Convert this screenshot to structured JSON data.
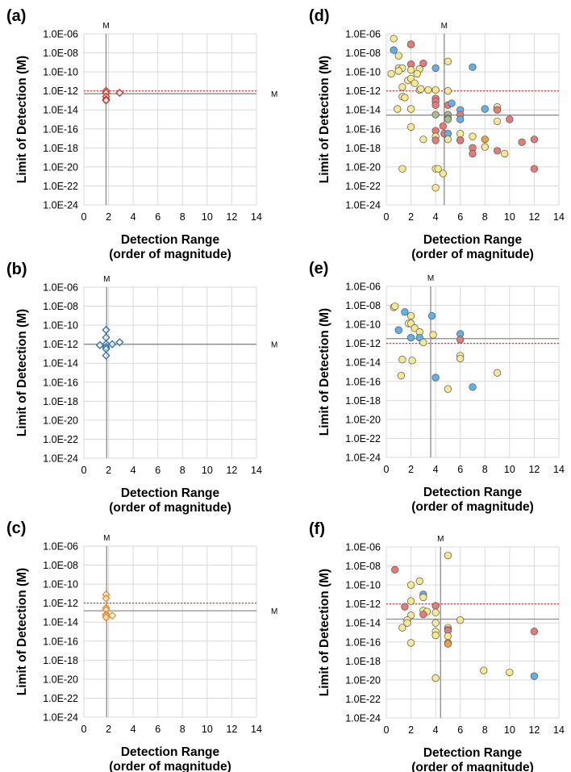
{
  "chart_data": [
    {
      "type": "scatter",
      "panel_label": "(a)",
      "xlabel": [
        "Detection Range",
        "(order of magnitude)"
      ],
      "ylabel": "Limit of Detection (M)",
      "xlim": [
        0,
        14
      ],
      "xticks": [
        "0",
        "2",
        "4",
        "6",
        "8",
        "10",
        "12",
        "14"
      ],
      "ylim_log10": [
        -24,
        -6
      ],
      "yticks": [
        "1.0E-06",
        "1.0E-08",
        "1.0E-10",
        "1.0E-12",
        "1.0E-14",
        "1.0E-16",
        "1.0E-18",
        "1.0E-20",
        "1.0E-22",
        "1.0E-24"
      ],
      "grid": true,
      "marker": "diamond",
      "marker_color": "#c0392b",
      "reference_line_log10": -12,
      "mean_label": "M",
      "mean": {
        "x": 1.8,
        "y_log10": -12.3
      },
      "points": [
        [
          1.8,
          -12.0
        ],
        [
          1.8,
          -12.2
        ],
        [
          1.8,
          -12.6
        ],
        [
          1.8,
          -12.9
        ],
        [
          1.8,
          -13.0
        ],
        [
          2.9,
          -12.2
        ]
      ]
    },
    {
      "type": "scatter",
      "panel_label": "(b)",
      "xlabel": [
        "Detection Range",
        "(order of magnitude)"
      ],
      "ylabel": "Limit of Detection (M)",
      "xlim": [
        0,
        14
      ],
      "xticks": [
        "0",
        "2",
        "4",
        "6",
        "8",
        "10",
        "12",
        "14"
      ],
      "ylim_log10": [
        -24,
        -6
      ],
      "yticks": [
        "1.0E-06",
        "1.0E-08",
        "1.0E-10",
        "1.0E-12",
        "1.0E-14",
        "1.0E-16",
        "1.0E-18",
        "1.0E-20",
        "1.0E-22",
        "1.0E-24"
      ],
      "grid": true,
      "marker": "diamond",
      "marker_color": "#2e6da4",
      "reference_line_log10": -12,
      "mean_label": "M",
      "mean": {
        "x": 1.85,
        "y_log10": -12.0
      },
      "points": [
        [
          1.8,
          -10.5
        ],
        [
          1.8,
          -11.3
        ],
        [
          1.3,
          -12.1
        ],
        [
          1.8,
          -12.0
        ],
        [
          1.8,
          -12.3
        ],
        [
          1.8,
          -12.5
        ],
        [
          1.8,
          -13.2
        ],
        [
          2.3,
          -12.0
        ],
        [
          2.9,
          -11.8
        ]
      ]
    },
    {
      "type": "scatter",
      "panel_label": "(c)",
      "xlabel": [
        "Detection Range",
        "(order of magnitude)"
      ],
      "ylabel": "Limit of Detection (M)",
      "xlim": [
        0,
        14
      ],
      "xticks": [
        "0",
        "2",
        "4",
        "6",
        "8",
        "10",
        "12",
        "14"
      ],
      "ylim_log10": [
        -24,
        -6
      ],
      "yticks": [
        "1.0E-06",
        "1.0E-08",
        "1.0E-10",
        "1.0E-12",
        "1.0E-14",
        "1.0E-16",
        "1.0E-18",
        "1.0E-20",
        "1.0E-22",
        "1.0E-24"
      ],
      "grid": true,
      "marker": "diamond",
      "marker_color": "#f08a24",
      "reference_line_log10": -12,
      "mean_label": "M",
      "mean": {
        "x": 1.85,
        "y_log10": -12.8
      },
      "points": [
        [
          1.8,
          -11.1
        ],
        [
          1.8,
          -11.5
        ],
        [
          1.8,
          -12.5
        ],
        [
          1.8,
          -12.7
        ],
        [
          1.8,
          -13.2
        ],
        [
          1.8,
          -13.3
        ],
        [
          1.8,
          -13.5
        ],
        [
          2.3,
          -13.3
        ]
      ]
    },
    {
      "type": "scatter",
      "panel_label": "(d)",
      "xlabel": [
        "Detection Range",
        "(order of magnitude)"
      ],
      "ylabel": "Limit of Detection (M)",
      "xlim": [
        0,
        14
      ],
      "xticks": [
        "0",
        "2",
        "4",
        "6",
        "8",
        "10",
        "12",
        "14"
      ],
      "ylim_log10": [
        -24,
        -6
      ],
      "yticks": [
        "1.0E-06",
        "1.0E-08",
        "1.0E-10",
        "1.0E-12",
        "1.0E-14",
        "1.0E-16",
        "1.0E-18",
        "1.0E-20",
        "1.0E-22",
        "1.0E-24"
      ],
      "grid": true,
      "marker": "circle",
      "reference_line_log10": -12,
      "mean_label": "M",
      "mean": {
        "x": 4.7,
        "y_log10": -14.55
      },
      "points": [
        [
          0.6,
          -6.5,
          "y"
        ],
        [
          2,
          -7.1,
          "b"
        ],
        [
          2,
          -7.1,
          "r"
        ],
        [
          0.6,
          -7.7,
          "b"
        ],
        [
          1.0,
          -8.3,
          "y"
        ],
        [
          2,
          -9.2,
          "r"
        ],
        [
          3,
          -9.1,
          "r"
        ],
        [
          4,
          -9.6,
          "b"
        ],
        [
          5,
          -8.9,
          "y"
        ],
        [
          7,
          -9.5,
          "b"
        ],
        [
          1.0,
          -9.6,
          "y"
        ],
        [
          1.3,
          -9.6,
          "y"
        ],
        [
          1.0,
          -9.9,
          "y"
        ],
        [
          2,
          -9.8,
          "y"
        ],
        [
          2.7,
          -9.7,
          "y"
        ],
        [
          2.5,
          -10.2,
          "y"
        ],
        [
          0.4,
          -10.2,
          "y"
        ],
        [
          1.75,
          -10.9,
          "y"
        ],
        [
          2,
          -10.7,
          "y"
        ],
        [
          2.3,
          -11.2,
          "y"
        ],
        [
          1.3,
          -11.6,
          "y"
        ],
        [
          2.7,
          -11.9,
          "y"
        ],
        [
          2.8,
          -11.8,
          "y"
        ],
        [
          3.4,
          -11.9,
          "y"
        ],
        [
          4,
          -11.9,
          "y"
        ],
        [
          5,
          -12.0,
          "y"
        ],
        [
          1.3,
          -12.6,
          "y"
        ],
        [
          1.5,
          -12.7,
          "y"
        ],
        [
          4,
          -12.8,
          "r"
        ],
        [
          4,
          -13.1,
          "r"
        ],
        [
          4,
          -13.5,
          "r"
        ],
        [
          5,
          -13.5,
          "r"
        ],
        [
          5.3,
          -13.3,
          "b"
        ],
        [
          0.9,
          -13.9,
          "y"
        ],
        [
          2,
          -13.9,
          "y"
        ],
        [
          4,
          -14.5,
          "g"
        ],
        [
          5,
          -14.5,
          "g"
        ],
        [
          5,
          -14.9,
          "g"
        ],
        [
          5,
          -15.0,
          "g"
        ],
        [
          6,
          -14.0,
          "b"
        ],
        [
          6,
          -14.5,
          "r"
        ],
        [
          6,
          -15.0,
          "b"
        ],
        [
          8,
          -13.9,
          "b"
        ],
        [
          9,
          -13.7,
          "y"
        ],
        [
          9,
          -14.0,
          "r"
        ],
        [
          10,
          -15.0,
          "r"
        ],
        [
          9,
          -15.2,
          "y"
        ],
        [
          2,
          -15.8,
          "y"
        ],
        [
          4.6,
          -15.7,
          "r"
        ],
        [
          4,
          -16.2,
          "r"
        ],
        [
          4.7,
          -16.5,
          "r"
        ],
        [
          5,
          -16.5,
          "b"
        ],
        [
          6,
          -16.5,
          "y"
        ],
        [
          4,
          -16.8,
          "y"
        ],
        [
          7,
          -16.8,
          "y"
        ],
        [
          4,
          -17.2,
          "r"
        ],
        [
          3,
          -17.1,
          "y"
        ],
        [
          5,
          -17.1,
          "y"
        ],
        [
          6,
          -17.2,
          "b"
        ],
        [
          6,
          -17.2,
          "r"
        ],
        [
          8,
          -17.1,
          "o"
        ],
        [
          11,
          -17.4,
          "r"
        ],
        [
          12,
          -17.1,
          "r"
        ],
        [
          7,
          -18.0,
          "r"
        ],
        [
          7,
          -18.6,
          "r"
        ],
        [
          8,
          -17.9,
          "y"
        ],
        [
          9,
          -18.3,
          "r"
        ],
        [
          9.6,
          -18.6,
          "y"
        ],
        [
          1.3,
          -20.2,
          "y"
        ],
        [
          4,
          -20.2,
          "y"
        ],
        [
          4.2,
          -20.2,
          "y"
        ],
        [
          4.6,
          -20.7,
          "y"
        ],
        [
          4,
          -22.2,
          "y"
        ],
        [
          12,
          -20.2,
          "r"
        ]
      ]
    },
    {
      "type": "scatter",
      "panel_label": "(e)",
      "xlabel": [
        "Detection Range",
        "(order of magnitude)"
      ],
      "ylabel": "Limit of Detection (M)",
      "xlim": [
        0,
        14
      ],
      "xticks": [
        "0",
        "2",
        "4",
        "6",
        "8",
        "10",
        "12",
        "14"
      ],
      "ylim_log10": [
        -24,
        -6
      ],
      "yticks": [
        "1.0E-06",
        "1.0E-08",
        "1.0E-10",
        "1.0E-12",
        "1.0E-14",
        "1.0E-16",
        "1.0E-18",
        "1.0E-20",
        "1.0E-22",
        "1.0E-24"
      ],
      "grid": true,
      "marker": "circle",
      "reference_line_log10": -12,
      "mean_label": "M",
      "mean": {
        "x": 3.6,
        "y_log10": -11.5
      },
      "points": [
        [
          0.6,
          -8.2,
          "y"
        ],
        [
          0.7,
          -8.1,
          "y"
        ],
        [
          1.5,
          -8.7,
          "b"
        ],
        [
          2,
          -9.1,
          "y"
        ],
        [
          3.7,
          -9.1,
          "b"
        ],
        [
          1.8,
          -9.9,
          "y"
        ],
        [
          2,
          -9.9,
          "y"
        ],
        [
          2.3,
          -10.4,
          "y"
        ],
        [
          1,
          -10.6,
          "b"
        ],
        [
          2.7,
          -10.8,
          "y"
        ],
        [
          6,
          -11.0,
          "b"
        ],
        [
          3.8,
          -11.1,
          "y"
        ],
        [
          2,
          -11.4,
          "b"
        ],
        [
          2.7,
          -11.4,
          "b"
        ],
        [
          6,
          -11.6,
          "r"
        ],
        [
          3,
          -11.9,
          "y"
        ],
        [
          6,
          -13.3,
          "y"
        ],
        [
          6,
          -13.6,
          "y"
        ],
        [
          1.3,
          -13.7,
          "y"
        ],
        [
          2.1,
          -13.8,
          "y"
        ],
        [
          1.2,
          -15.4,
          "y"
        ],
        [
          4,
          -15.6,
          "b"
        ],
        [
          9,
          -15.1,
          "y"
        ],
        [
          5,
          -16.8,
          "y"
        ],
        [
          7,
          -16.6,
          "b"
        ]
      ]
    },
    {
      "type": "scatter",
      "panel_label": "(f)",
      "xlabel": [
        "Detection Range",
        "(order of magnitude)"
      ],
      "ylabel": "Limit of Detection (M)",
      "xlim": [
        0,
        14
      ],
      "xticks": [
        "0",
        "2",
        "4",
        "6",
        "8",
        "10",
        "12",
        "14"
      ],
      "ylim_log10": [
        -24,
        -6
      ],
      "yticks": [
        "1.0E-06",
        "1.0E-08",
        "1.0E-10",
        "1.0E-12",
        "1.0E-14",
        "1.0E-16",
        "1.0E-18",
        "1.0E-20",
        "1.0E-22",
        "1.0E-24"
      ],
      "grid": true,
      "marker": "circle",
      "reference_line_log10": -12,
      "mean_label": "M",
      "mean": {
        "x": 4.4,
        "y_log10": -13.6
      },
      "points": [
        [
          0.7,
          -8.4,
          "r"
        ],
        [
          5,
          -6.9,
          "y"
        ],
        [
          2.7,
          -9.6,
          "y"
        ],
        [
          2,
          -10.0,
          "y"
        ],
        [
          3,
          -11.0,
          "b"
        ],
        [
          3,
          -11.3,
          "y"
        ],
        [
          2,
          -11.7,
          "y"
        ],
        [
          1.5,
          -12.3,
          "r"
        ],
        [
          4,
          -12.2,
          "r"
        ],
        [
          3,
          -12.7,
          "y"
        ],
        [
          3.3,
          -12.8,
          "y"
        ],
        [
          4,
          -12.9,
          "y"
        ],
        [
          3,
          -13.1,
          "r"
        ],
        [
          2,
          -13.2,
          "y"
        ],
        [
          6,
          -13.7,
          "y"
        ],
        [
          1.7,
          -13.7,
          "y"
        ],
        [
          1.7,
          -14.0,
          "y"
        ],
        [
          1.3,
          -14.5,
          "y"
        ],
        [
          4,
          -14.0,
          "y"
        ],
        [
          5,
          -14.5,
          "y"
        ],
        [
          5,
          -14.7,
          "y"
        ],
        [
          5,
          -14.8,
          "r"
        ],
        [
          4,
          -14.9,
          "y"
        ],
        [
          4,
          -15.3,
          "y"
        ],
        [
          5,
          -15.4,
          "y"
        ],
        [
          2,
          -16.1,
          "y"
        ],
        [
          5,
          -16.1,
          "o"
        ],
        [
          5,
          -16.2,
          "o"
        ],
        [
          12,
          -14.9,
          "r"
        ],
        [
          7.9,
          -19.0,
          "y"
        ],
        [
          10,
          -19.2,
          "y"
        ],
        [
          12,
          -19.6,
          "b"
        ],
        [
          4,
          -19.8,
          "y"
        ]
      ]
    }
  ],
  "colors": {
    "y": "#f4e98f",
    "r": "#e77a76",
    "b": "#62b1e6",
    "g": "#a3bd8c",
    "o": "#f0a044",
    "reference_line": "#e0262a",
    "mean_line": "#8c8c8c",
    "grid": "#d9d9d9"
  }
}
